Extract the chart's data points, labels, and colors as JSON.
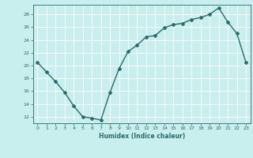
{
  "x": [
    0,
    1,
    2,
    3,
    4,
    5,
    6,
    7,
    8,
    9,
    10,
    11,
    12,
    13,
    14,
    15,
    16,
    17,
    18,
    19,
    20,
    21,
    22,
    23
  ],
  "y": [
    20.5,
    19.0,
    17.5,
    15.8,
    13.7,
    12.0,
    11.8,
    11.5,
    15.8,
    19.5,
    22.2,
    23.2,
    24.5,
    24.7,
    25.9,
    26.4,
    26.6,
    27.2,
    27.5,
    28.0,
    29.0,
    26.8,
    25.0,
    20.5
  ],
  "line_color": "#2a6b6b",
  "bg_color": "#c8eeee",
  "grid_color": "#ffffff",
  "tick_color": "#2a6b6b",
  "xlabel": "Humidex (Indice chaleur)",
  "xlim": [
    -0.5,
    23.5
  ],
  "ylim": [
    11,
    29.5
  ],
  "yticks": [
    12,
    14,
    16,
    18,
    20,
    22,
    24,
    26,
    28
  ],
  "xticks": [
    0,
    1,
    2,
    3,
    4,
    5,
    6,
    7,
    8,
    9,
    10,
    11,
    12,
    13,
    14,
    15,
    16,
    17,
    18,
    19,
    20,
    21,
    22,
    23
  ],
  "marker": "D",
  "marker_size": 2.0,
  "line_width": 1.0
}
